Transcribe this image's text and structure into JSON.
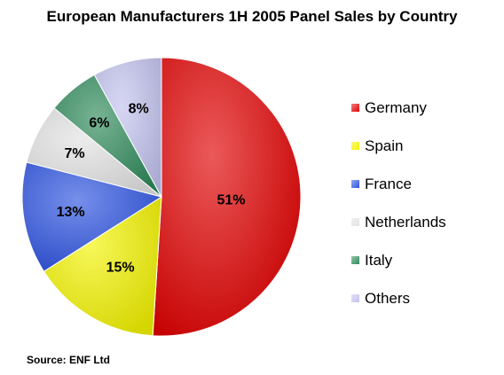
{
  "chart_data": {
    "type": "pie",
    "title": "European Manufacturers 1H 2005 Panel Sales by Country",
    "legend_position": "right",
    "slices": [
      {
        "label": "Germany",
        "value": 51,
        "display": "51%",
        "color": "#e00000"
      },
      {
        "label": "Spain",
        "value": 15,
        "display": "15%",
        "color": "#f2f200"
      },
      {
        "label": "France",
        "value": 13,
        "display": "13%",
        "color": "#2c52e0"
      },
      {
        "label": "Netherlands",
        "value": 7,
        "display": "7%",
        "color": "#e2e2e2"
      },
      {
        "label": "Italy",
        "value": 6,
        "display": "6%",
        "color": "#2e8a5a"
      },
      {
        "label": "Others",
        "value": 8,
        "display": "8%",
        "color": "#c2c2ee"
      }
    ],
    "source": "Source: ENF Ltd"
  }
}
